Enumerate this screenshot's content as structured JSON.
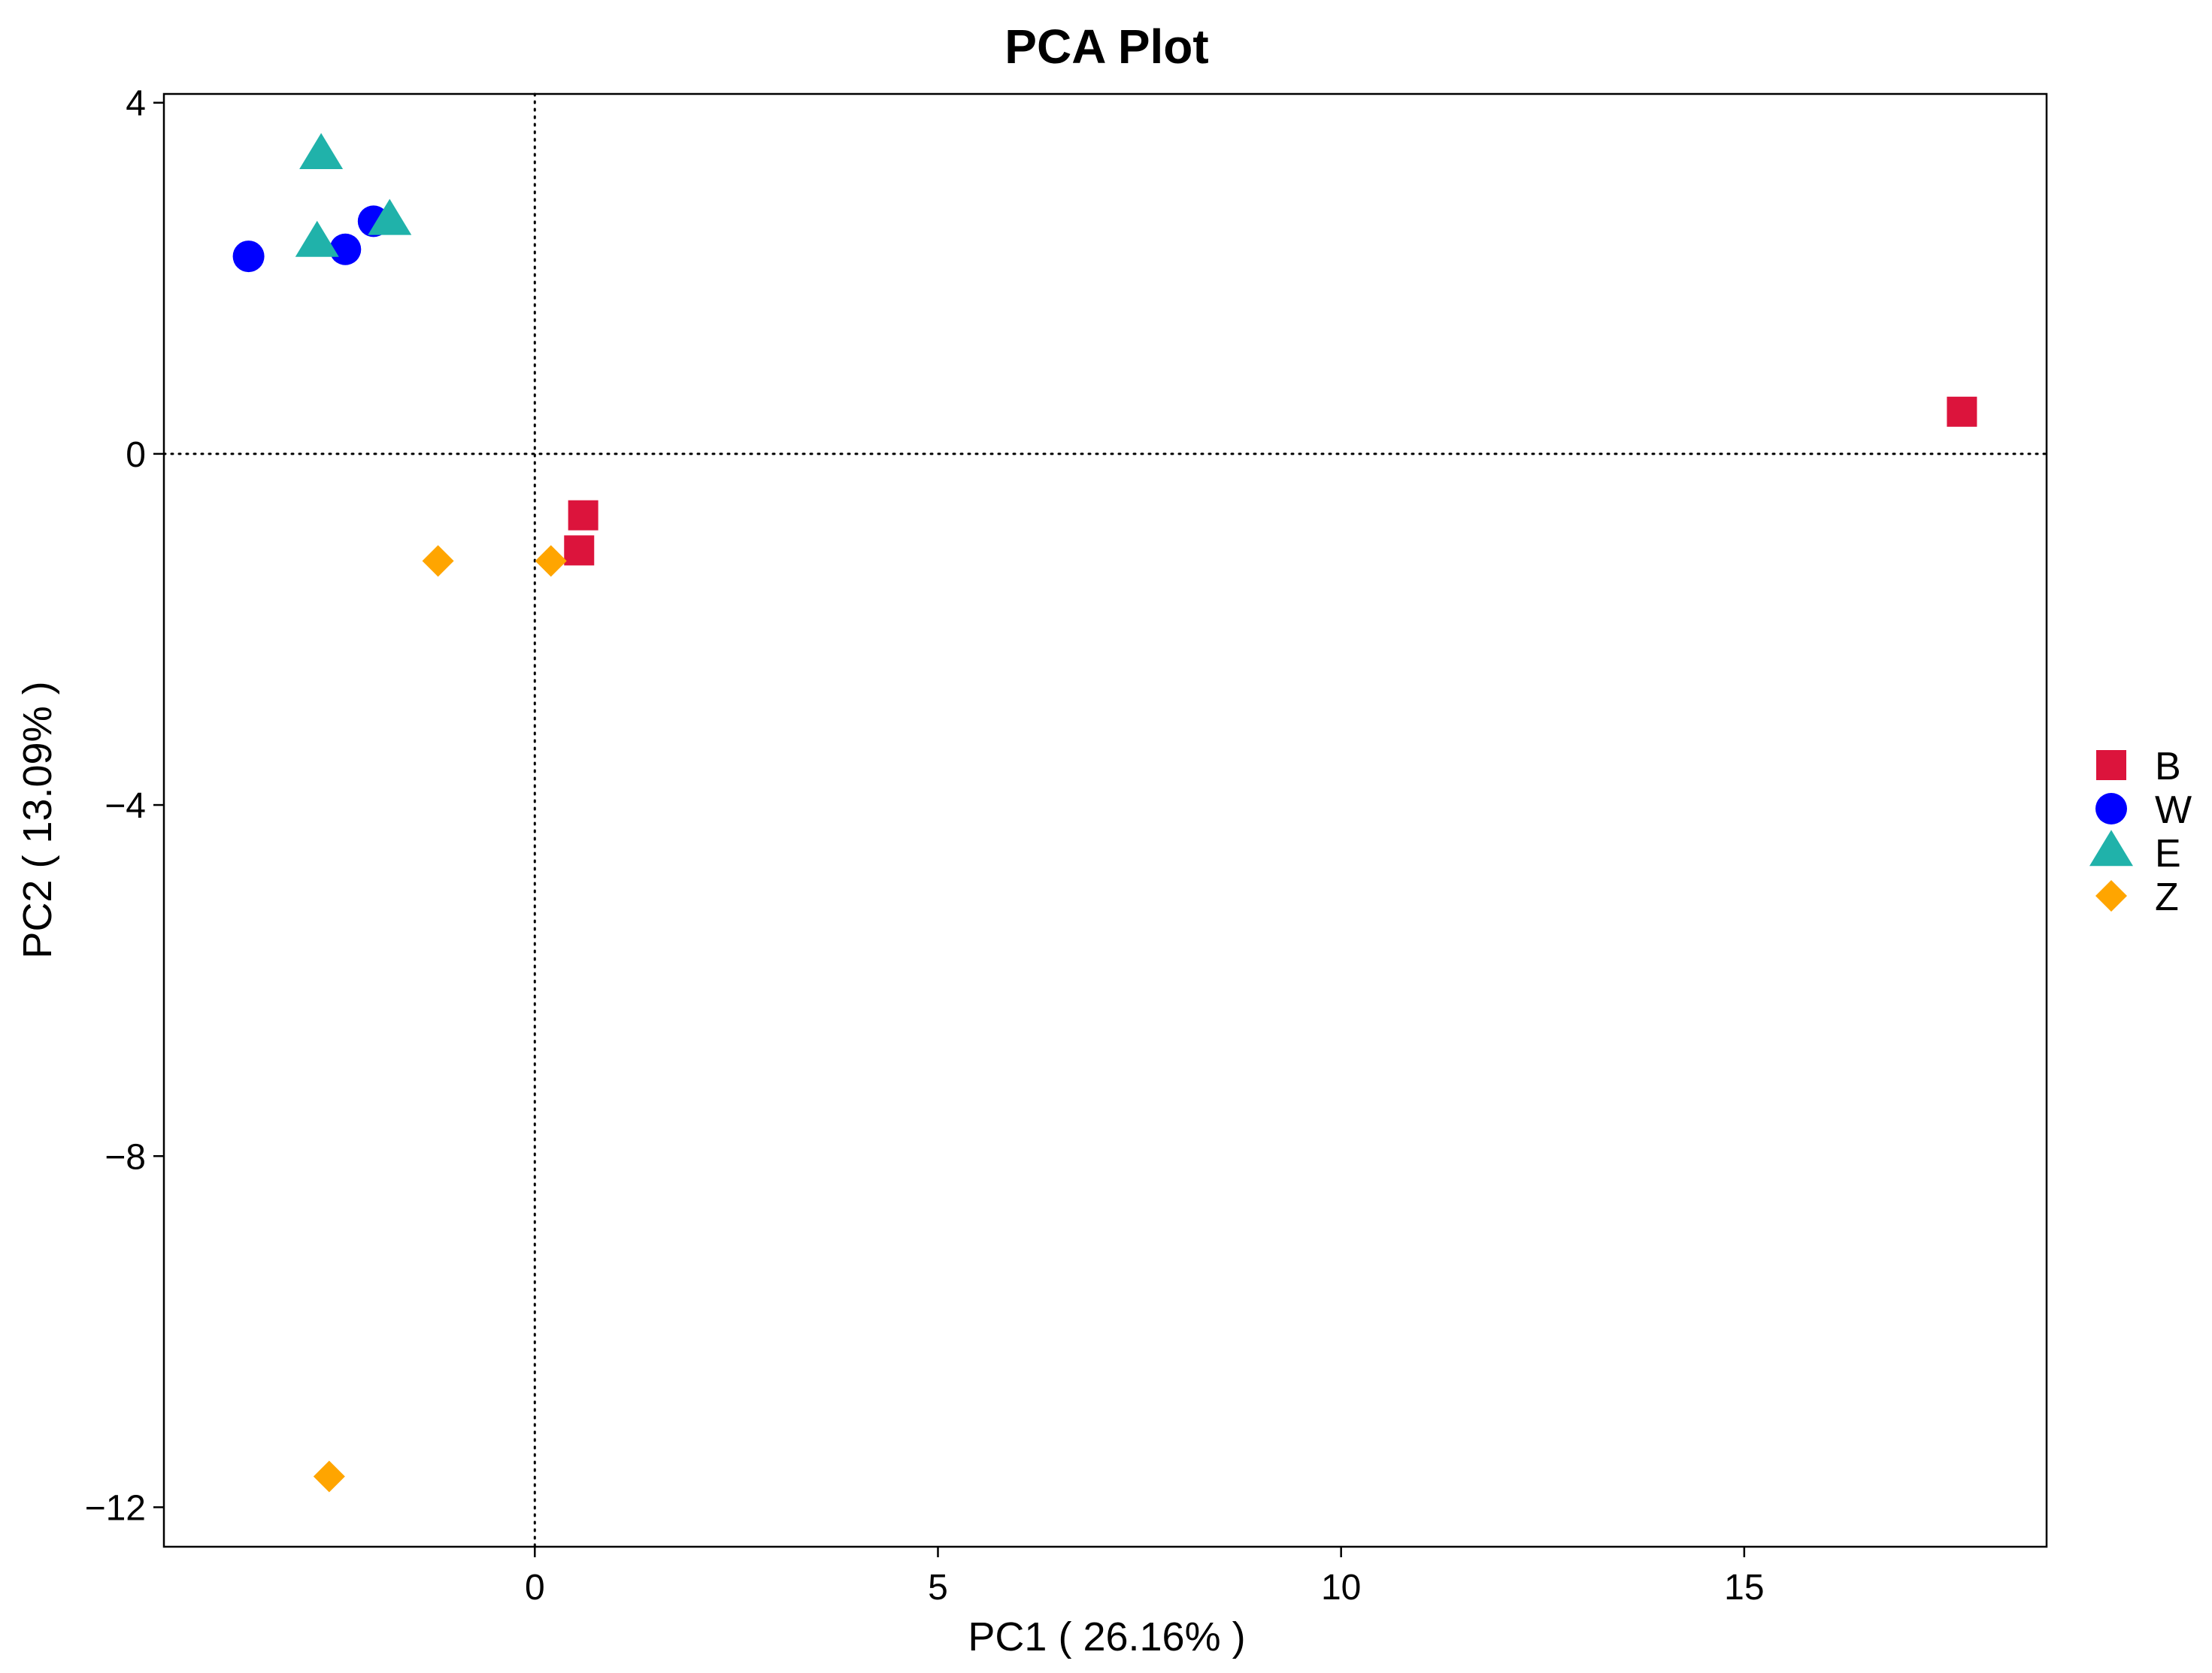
{
  "chart_data": {
    "type": "scatter",
    "title": "PCA Plot",
    "xlabel": "PC1 ( 26.16% )",
    "ylabel": "PC2 ( 13.09% )",
    "xlim": [
      -4.6,
      18.75
    ],
    "ylim": [
      -12.45,
      4.1
    ],
    "xticks": [
      0,
      5,
      10,
      15
    ],
    "yticks": [
      4,
      0,
      -4,
      -8,
      -12
    ],
    "xtick_labels": [
      "0",
      "5",
      "10",
      "15"
    ],
    "ytick_labels": [
      "4",
      "0",
      "−4",
      "−8",
      "−12"
    ],
    "reference_lines": {
      "x": 0,
      "y": 0,
      "style": "dotted"
    },
    "grid": false,
    "legend_position": "right",
    "series": [
      {
        "name": "B",
        "marker": "square",
        "color": "#DC143C",
        "points": [
          [
            17.7,
            0.48
          ],
          [
            0.55,
            -1.1
          ],
          [
            0.6,
            -0.7
          ]
        ]
      },
      {
        "name": "W",
        "marker": "circle",
        "color": "#0000FF",
        "points": [
          [
            -3.55,
            2.25
          ],
          [
            -2.35,
            2.33
          ],
          [
            -2.0,
            2.65
          ]
        ]
      },
      {
        "name": "E",
        "marker": "triangle",
        "color": "#20B2AA",
        "points": [
          [
            -2.65,
            3.4
          ],
          [
            -2.7,
            2.4
          ],
          [
            -1.8,
            2.65
          ]
        ]
      },
      {
        "name": "Z",
        "marker": "diamond",
        "color": "#FFA500",
        "points": [
          [
            -1.2,
            -1.22
          ],
          [
            0.2,
            -1.22
          ],
          [
            -2.55,
            -11.65
          ]
        ]
      }
    ]
  }
}
